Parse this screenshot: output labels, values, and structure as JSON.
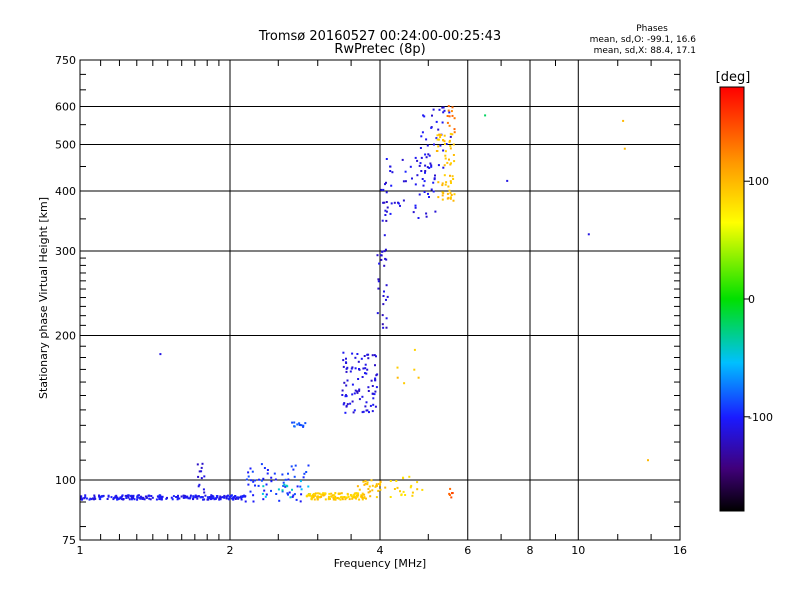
{
  "header": {
    "title_line1": "Tromsø 20160527 00:24:00-00:25:43",
    "title_line2": "RwPretec (8p)"
  },
  "stats": {
    "heading": "Phases",
    "line_o": "mean, sd,O: -99.1, 16.6",
    "line_x": "mean, sd,X: 88.4, 17.1"
  },
  "colorbar": {
    "label": "[deg]",
    "ticks": [
      {
        "value": 100,
        "label": "100"
      },
      {
        "value": 0,
        "label": "0"
      },
      {
        "value": -100,
        "label": "-100"
      }
    ],
    "range": [
      -180,
      180
    ]
  },
  "chart_data": {
    "type": "scatter",
    "xlabel": "Frequency [MHz]",
    "ylabel": "Stationary phase Virtual Height [km]",
    "xscale": "log",
    "yscale": "log",
    "xlim": [
      1,
      16
    ],
    "ylim": [
      75,
      750
    ],
    "x_ticks": [
      {
        "v": 1,
        "label": "1"
      },
      {
        "v": 2,
        "label": "2"
      },
      {
        "v": 4,
        "label": "4"
      },
      {
        "v": 6,
        "label": "6"
      },
      {
        "v": 8,
        "label": "8"
      },
      {
        "v": 10,
        "label": "10"
      },
      {
        "v": 16,
        "label": "16"
      }
    ],
    "y_ticks": [
      {
        "v": 75,
        "label": "75"
      },
      {
        "v": 100,
        "label": "100"
      },
      {
        "v": 200,
        "label": "200"
      },
      {
        "v": 300,
        "label": "300"
      },
      {
        "v": 400,
        "label": "400"
      },
      {
        "v": 500,
        "label": "500"
      },
      {
        "v": 600,
        "label": "600"
      },
      {
        "v": 750,
        "label": "750"
      }
    ],
    "grid_x": [
      2,
      4,
      6,
      8,
      10
    ],
    "grid_y": [
      100,
      200,
      300,
      400,
      500,
      600
    ],
    "grid": true,
    "color_by": "phase [deg]",
    "clusters": [
      {
        "x0": 1.0,
        "x1": 2.15,
        "y0": 91,
        "y1": 93,
        "phase": -105,
        "n": 240
      },
      {
        "x0": 1.72,
        "x1": 1.78,
        "y0": 93,
        "y1": 110,
        "phase": -110,
        "n": 12
      },
      {
        "x0": 2.15,
        "x1": 2.9,
        "y0": 90,
        "y1": 108,
        "phase": -95,
        "n": 60
      },
      {
        "x0": 2.3,
        "x1": 2.9,
        "y0": 92,
        "y1": 100,
        "phase": -45,
        "n": 14
      },
      {
        "x0": 2.65,
        "x1": 2.85,
        "y0": 128,
        "y1": 132,
        "phase": -85,
        "n": 12
      },
      {
        "x0": 2.85,
        "x1": 3.75,
        "y0": 91,
        "y1": 94,
        "phase": 90,
        "n": 120
      },
      {
        "x0": 3.6,
        "x1": 4.1,
        "y0": 92,
        "y1": 100,
        "phase": 95,
        "n": 30
      },
      {
        "x0": 4.2,
        "x1": 4.9,
        "y0": 92,
        "y1": 102,
        "phase": 85,
        "n": 20
      },
      {
        "x0": 3.35,
        "x1": 3.95,
        "y0": 138,
        "y1": 185,
        "phase": -110,
        "n": 90
      },
      {
        "x0": 3.95,
        "x1": 4.15,
        "y0": 205,
        "y1": 420,
        "phase": -115,
        "n": 40
      },
      {
        "x0": 4.1,
        "x1": 5.3,
        "y0": 350,
        "y1": 470,
        "phase": -108,
        "n": 50
      },
      {
        "x0": 4.8,
        "x1": 5.55,
        "y0": 440,
        "y1": 600,
        "phase": -110,
        "n": 40
      },
      {
        "x0": 5.2,
        "x1": 5.65,
        "y0": 380,
        "y1": 530,
        "phase": 95,
        "n": 60
      },
      {
        "x0": 5.45,
        "x1": 5.65,
        "y0": 520,
        "y1": 620,
        "phase": 130,
        "n": 12
      },
      {
        "x0": 4.2,
        "x1": 4.8,
        "y0": 155,
        "y1": 190,
        "phase": 90,
        "n": 6
      },
      {
        "x0": 5.5,
        "x1": 5.6,
        "y0": 92,
        "y1": 96,
        "phase": 140,
        "n": 6
      }
    ],
    "points": [
      {
        "x": 1.45,
        "y": 183,
        "phase": -110
      },
      {
        "x": 6.5,
        "y": 575,
        "phase": -20
      },
      {
        "x": 7.2,
        "y": 420,
        "phase": -110
      },
      {
        "x": 10.5,
        "y": 325,
        "phase": -110
      },
      {
        "x": 12.3,
        "y": 560,
        "phase": 100
      },
      {
        "x": 12.4,
        "y": 490,
        "phase": 100
      },
      {
        "x": 13.8,
        "y": 110,
        "phase": 100
      }
    ]
  }
}
